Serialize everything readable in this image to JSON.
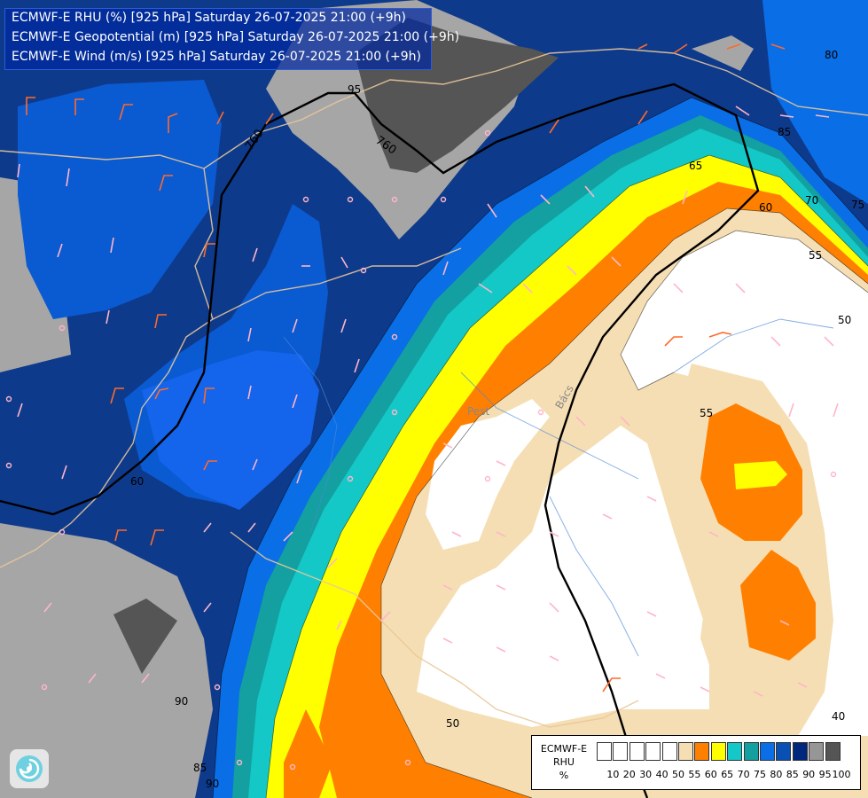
{
  "header": {
    "lines": [
      "ECMWF-E RHU (%) [925 hPa] Saturday 26-07-2025 21:00 (+9h)",
      "ECMWF-E Geopotential (m) [925 hPa] Saturday 26-07-2025 21:00 (+9h)",
      "ECMWF-E Wind (m/s) [925 hPa] Saturday 26-07-2025 21:00 (+9h)"
    ]
  },
  "legend": {
    "title_lines": [
      "ECMWF-E",
      "RHU",
      "%"
    ],
    "ticks": [
      "10",
      "20",
      "30",
      "40",
      "50",
      "55",
      "60",
      "65",
      "70",
      "75",
      "80",
      "85",
      "90",
      "95",
      "100"
    ],
    "colors": [
      "#ffffff",
      "#ffffff",
      "#ffffff",
      "#ffffff",
      "#ffffff",
      "#f5deb3",
      "#ff8000",
      "#ffff00",
      "#14c8c8",
      "#14a0a0",
      "#0a6ee6",
      "#0850b4",
      "#00287d",
      "#969696",
      "#555555"
    ]
  },
  "map": {
    "contour_labels": {
      "rh": [
        "65",
        "70",
        "75",
        "60",
        "55",
        "50",
        "55",
        "50",
        "40",
        "80",
        "85",
        "95",
        "60",
        "85",
        "90",
        "90"
      ],
      "geopotential": [
        "760",
        "760"
      ]
    },
    "place_labels": [
      "Pest",
      "Bács"
    ]
  },
  "logo": {
    "icon": "ecmwf-logo-icon"
  }
}
